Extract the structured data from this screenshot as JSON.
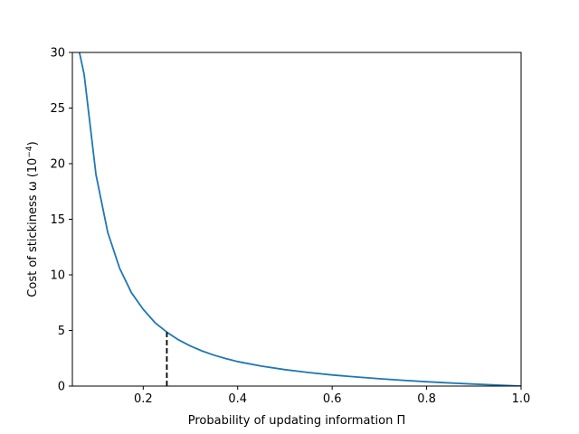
{
  "chart_data": {
    "type": "line",
    "title": "",
    "xlabel": "Probability of updating information Π",
    "ylabel_main": "Cost of stickiness ω (10",
    "ylabel_exp": "−4",
    "ylabel_close": ")",
    "xlim": [
      0.05,
      1.0
    ],
    "ylim": [
      0,
      30
    ],
    "xticks": [
      0.2,
      0.4,
      0.6,
      0.8,
      1.0
    ],
    "xtick_labels": [
      "0.2",
      "0.4",
      "0.6",
      "0.8",
      "1.0"
    ],
    "yticks": [
      0,
      5,
      10,
      15,
      20,
      25,
      30
    ],
    "ytick_labels": [
      "0",
      "5",
      "10",
      "15",
      "20",
      "25",
      "30"
    ],
    "grid": false,
    "series": [
      {
        "color": "#1f77b4",
        "x": [
          0.065,
          0.075,
          0.1,
          0.125,
          0.15,
          0.175,
          0.2,
          0.225,
          0.25,
          0.275,
          0.3,
          0.325,
          0.35,
          0.375,
          0.4,
          0.45,
          0.5,
          0.55,
          0.6,
          0.65,
          0.7,
          0.75,
          0.8,
          0.85,
          0.9,
          0.95,
          1.0
        ],
        "y": [
          30,
          28.0,
          19.0,
          13.8,
          10.6,
          8.4,
          6.9,
          5.7,
          4.85,
          4.15,
          3.6,
          3.15,
          2.78,
          2.47,
          2.2,
          1.8,
          1.48,
          1.22,
          1.0,
          0.82,
          0.66,
          0.52,
          0.39,
          0.28,
          0.18,
          0.09,
          0.0
        ]
      }
    ],
    "marker_line": {
      "x": 0.25,
      "y_from": 0,
      "y_to": 4.85,
      "color": "#000000",
      "style": "dashed"
    }
  }
}
